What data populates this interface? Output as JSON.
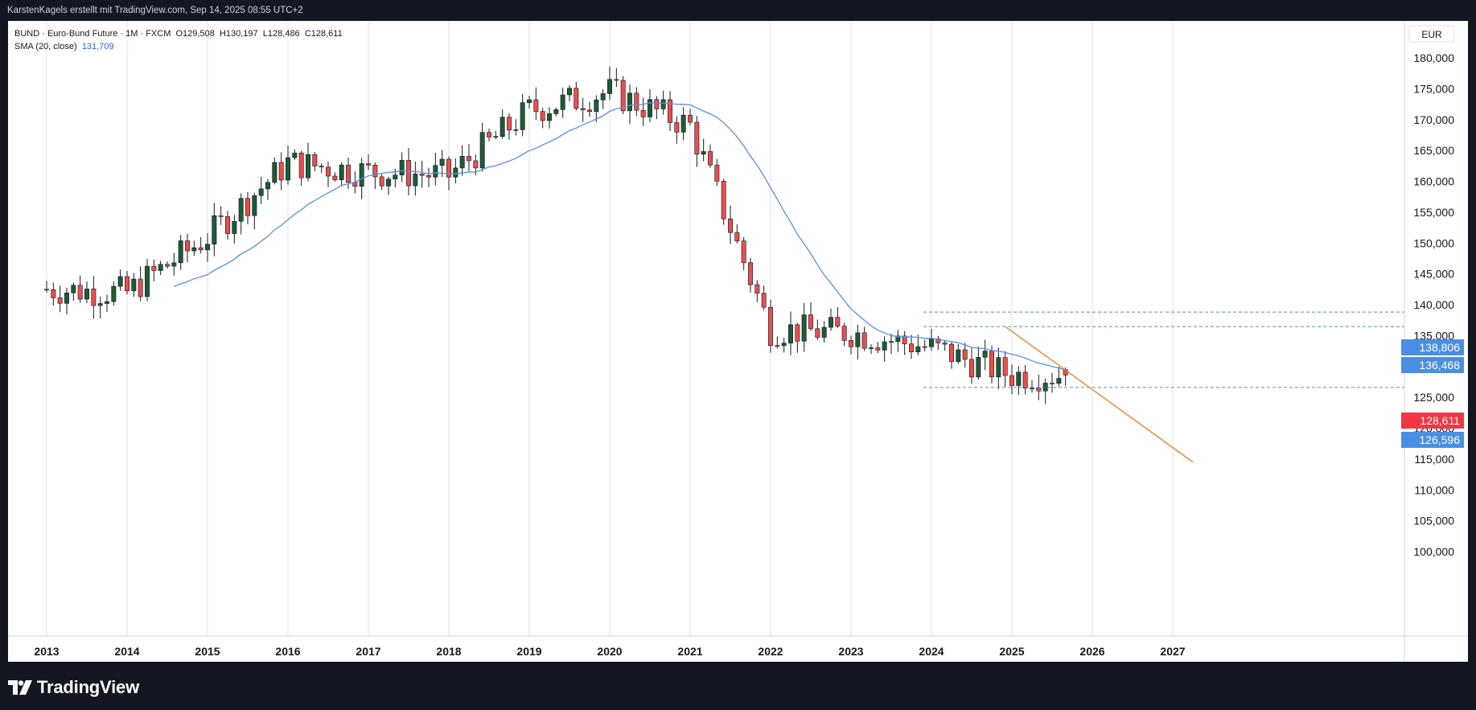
{
  "header": {
    "caption": "KarstenKagels erstellt mit TradingView.com, Sep 14, 2025 08:55 UTC+2"
  },
  "legend": {
    "symbol_line": "BUND · Euro-Bund Future · 1M · FXCM",
    "open": "O129,508",
    "high": "H130,197",
    "low": "L128,486",
    "close": "C128,611",
    "sma_label": "SMA (20, close)",
    "sma_value": "131,709"
  },
  "footer": {
    "brand": "TradingView"
  },
  "price_axis": {
    "currency": "EUR",
    "labels": [
      {
        "value": 180000,
        "text": "180,000"
      },
      {
        "value": 175000,
        "text": "175,000"
      },
      {
        "value": 170000,
        "text": "170,000"
      },
      {
        "value": 165000,
        "text": "165,000"
      },
      {
        "value": 160000,
        "text": "160,000"
      },
      {
        "value": 155000,
        "text": "155,000"
      },
      {
        "value": 150000,
        "text": "150,000"
      },
      {
        "value": 145000,
        "text": "145,000"
      },
      {
        "value": 140000,
        "text": "140,000"
      },
      {
        "value": 135000,
        "text": "135,000"
      },
      {
        "value": 130000,
        "text": "130,000"
      },
      {
        "value": 125000,
        "text": "125,000"
      },
      {
        "value": 120000,
        "text": "120,000"
      },
      {
        "value": 115000,
        "text": "115,000"
      },
      {
        "value": 110000,
        "text": "110,000"
      },
      {
        "value": 105000,
        "text": "105,000"
      },
      {
        "value": 100000,
        "text": "100,000"
      }
    ],
    "marked_levels": [
      {
        "value": 138806,
        "text": "138,806",
        "color": "#2962ff"
      },
      {
        "value": 136468,
        "text": "136,468",
        "color": "#2962ff"
      },
      {
        "value": 126596,
        "text": "126,596",
        "color": "#2962ff"
      }
    ],
    "last_price": {
      "value": 128611,
      "text": "128,611",
      "color": "#f23645"
    }
  },
  "colors": {
    "up": "#1e5b34",
    "down": "#e84e4e",
    "sma": "#5b8def",
    "trendline": "#f57c1f",
    "levels": "#4a90e2"
  },
  "chart_data": {
    "type": "candlestick",
    "symbol": "BUND",
    "title": "Euro-Bund Future",
    "interval": "1M",
    "exchange": "FXCM",
    "currency": "EUR",
    "ylim": [
      98500,
      181500
    ],
    "x_ticks": [
      "2013",
      "2014",
      "2015",
      "2016",
      "2017",
      "2018",
      "2019",
      "2020",
      "2021",
      "2022",
      "2023",
      "2024",
      "2025",
      "2026",
      "2027"
    ],
    "grid": "vertical year lines",
    "yearly_price_path": [
      {
        "year": 2013,
        "close": 142500,
        "low": 138000,
        "high": 147000
      },
      {
        "year": 2014,
        "close": 142000,
        "low": 137000,
        "high": 146000
      },
      {
        "year": 2015,
        "close": 151000,
        "low": 148000,
        "high": 161000
      },
      {
        "year": 2016,
        "close": 163000,
        "low": 160000,
        "high": 168500
      },
      {
        "year": 2017,
        "close": 161500,
        "low": 159000,
        "high": 166000
      },
      {
        "year": 2018,
        "close": 161000,
        "low": 156000,
        "high": 163500
      },
      {
        "year": 2019,
        "close": 171500,
        "low": 158000,
        "high": 179500
      },
      {
        "year": 2020,
        "close": 174500,
        "low": 167000,
        "high": 178500
      },
      {
        "year": 2021,
        "close": 169000,
        "low": 167500,
        "high": 177500
      },
      {
        "year": 2022,
        "close": 136000,
        "low": 133000,
        "high": 171000
      },
      {
        "year": 2023,
        "close": 135500,
        "low": 126600,
        "high": 138800
      },
      {
        "year": 2024,
        "close": 133000,
        "low": 129000,
        "high": 136500
      },
      {
        "year": 2025,
        "close": 128611,
        "low": 126596,
        "high": 131700
      }
    ],
    "indicator": {
      "name": "SMA",
      "length": 20,
      "source": "close",
      "last": 131709
    },
    "horizontal_levels": [
      138806,
      136468,
      126596
    ],
    "trendline": {
      "from": {
        "date": "2024-12",
        "price": 136468
      },
      "to": {
        "date": "2027-04",
        "price": 114500
      }
    },
    "last": {
      "open": 129508,
      "high": 130197,
      "low": 128486,
      "close": 128611
    }
  }
}
